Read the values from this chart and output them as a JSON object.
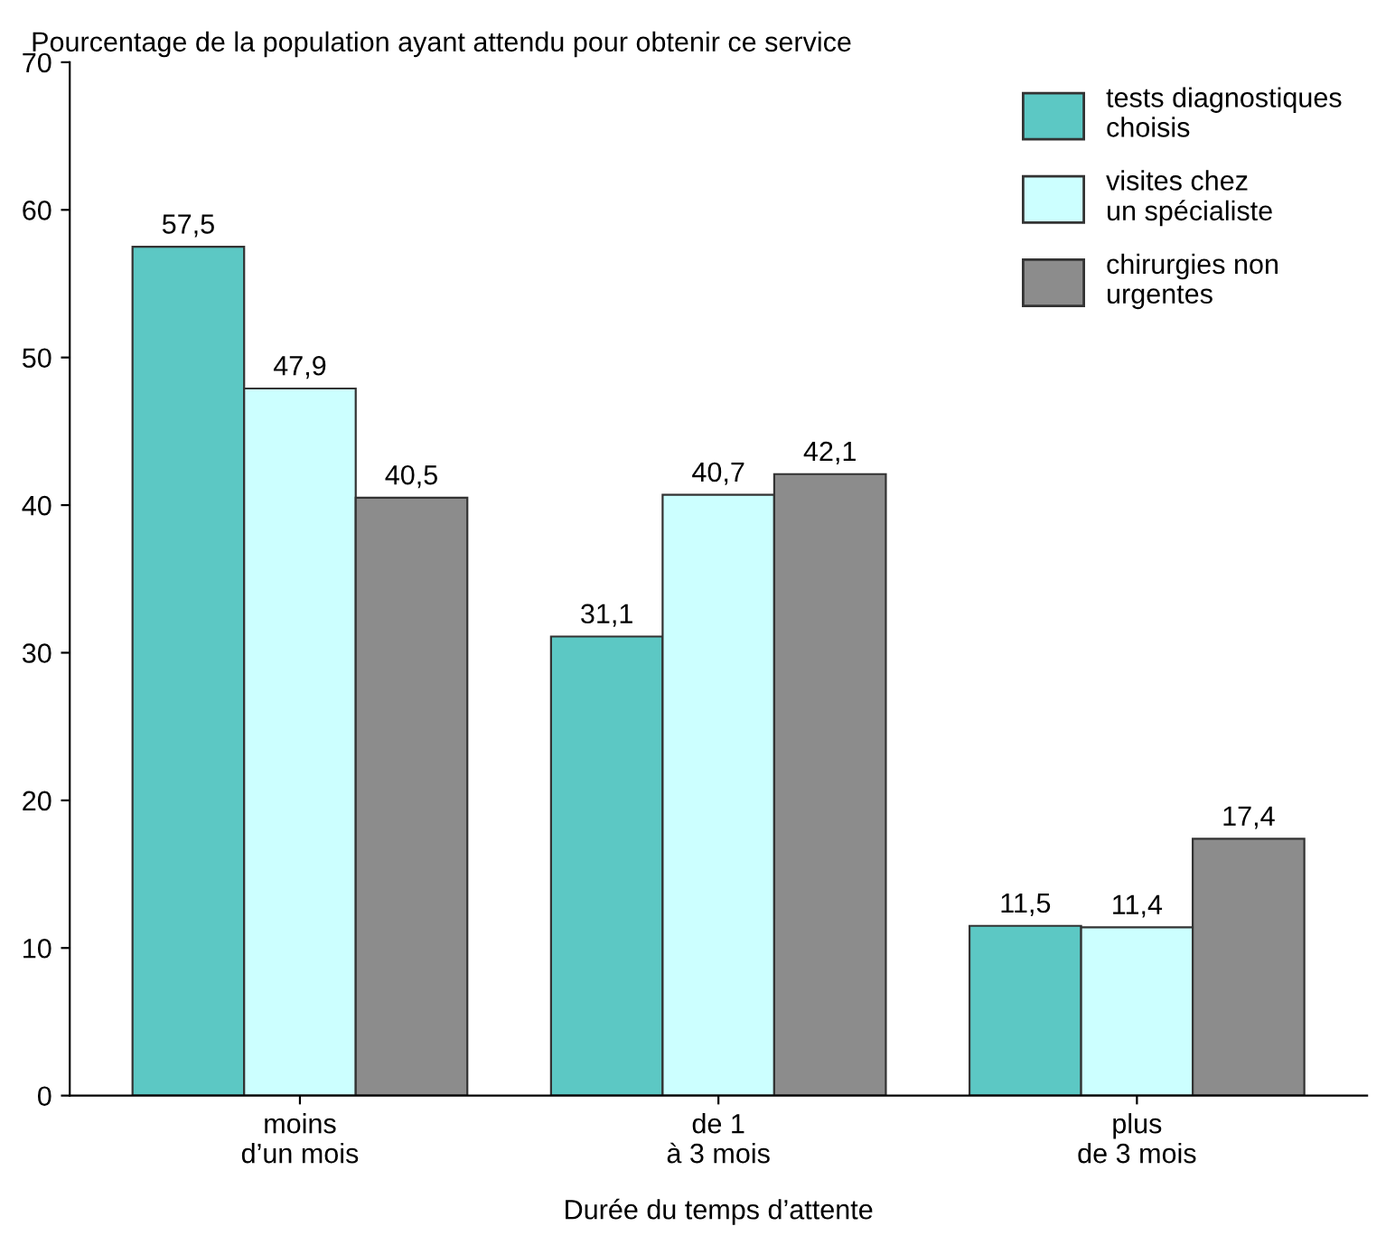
{
  "chart_data": {
    "type": "bar",
    "ylabel": "Pourcentage de la population ayant attendu pour obtenir ce service",
    "xlabel": "Durée du temps d’attente",
    "categories": [
      "moins\nd’un mois",
      "de 1\nà 3 mois",
      "plus\nde 3 mois"
    ],
    "series": [
      {
        "name": "tests diagnostiques\nchoisis",
        "color": "#5cc8c4",
        "values": [
          57.5,
          31.1,
          11.5
        ],
        "value_labels": [
          "57,5",
          "31,1",
          "11,5"
        ]
      },
      {
        "name": "visites chez\nun spécialiste",
        "color": "#ccffff",
        "values": [
          47.9,
          40.7,
          11.4
        ],
        "value_labels": [
          "47,9",
          "40,7",
          "11,4"
        ]
      },
      {
        "name": "chirurgies non\nurgentes",
        "color": "#8c8c8c",
        "values": [
          40.5,
          42.1,
          17.4
        ],
        "value_labels": [
          "40,5",
          "42,1",
          "17,4"
        ]
      }
    ],
    "ylim": [
      0,
      70
    ],
    "yticks": [
      0,
      10,
      20,
      30,
      40,
      50,
      60,
      70
    ],
    "grid": false,
    "legend": "top right"
  }
}
